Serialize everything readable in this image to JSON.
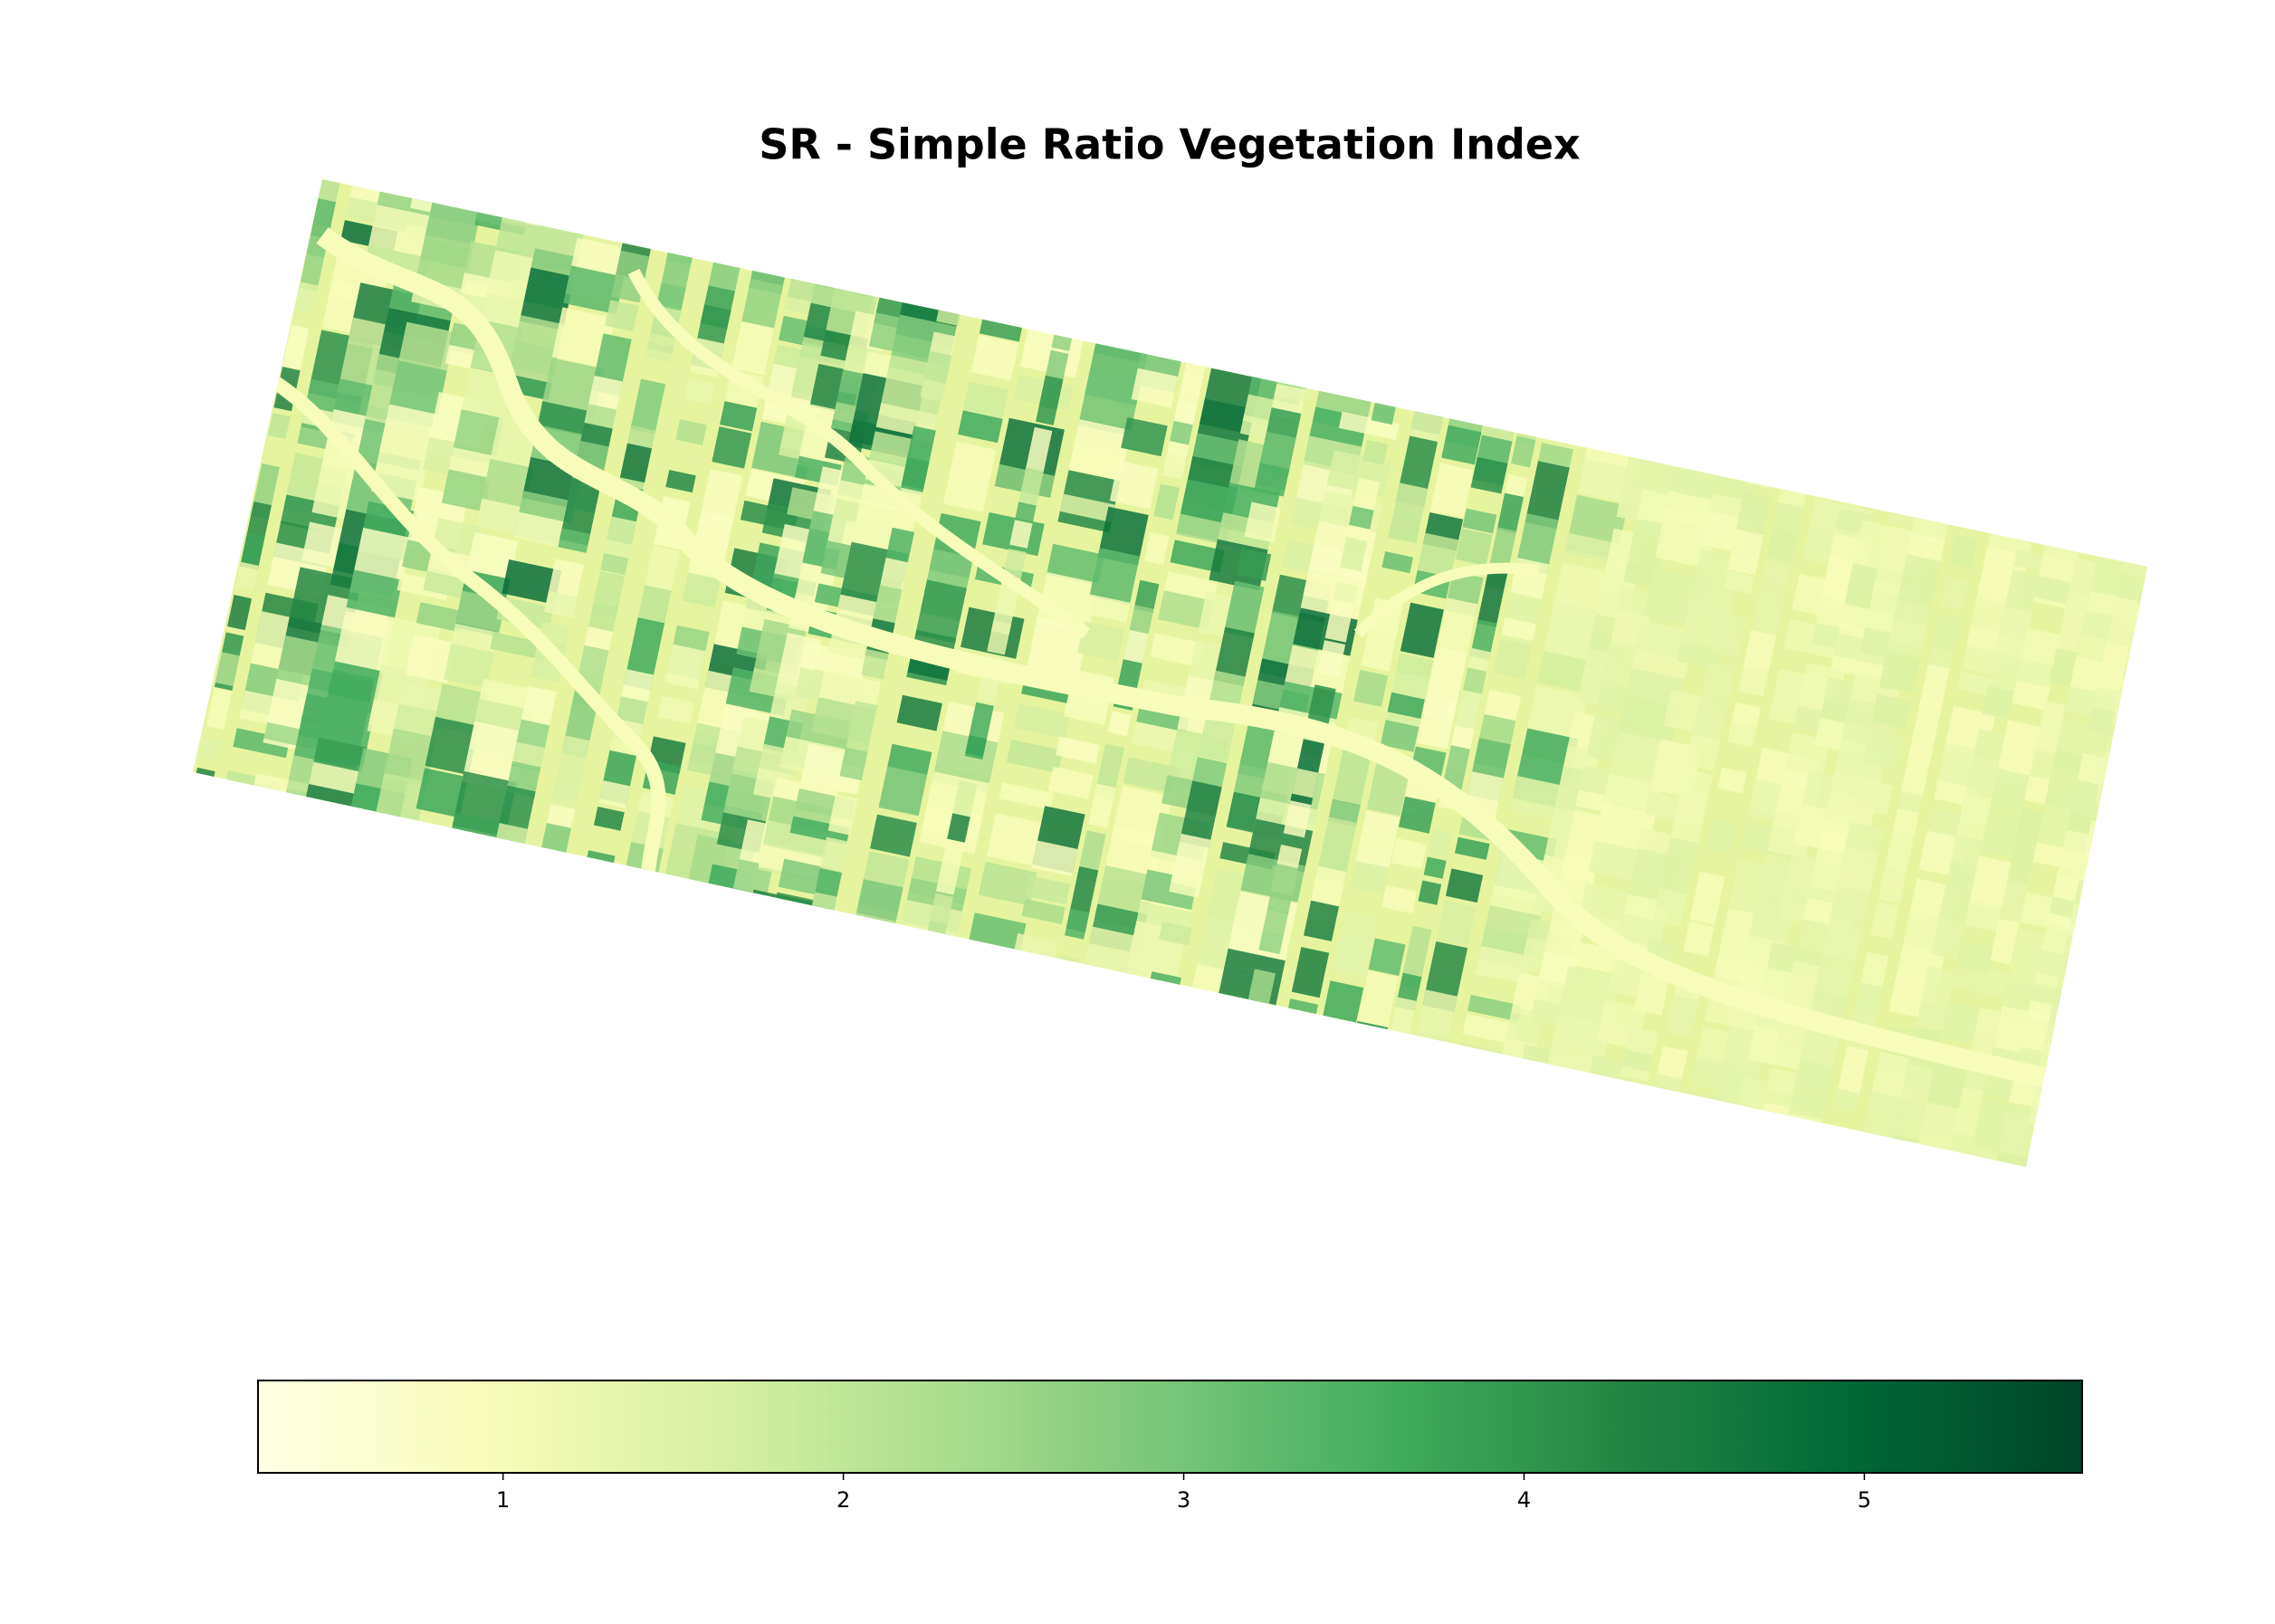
{
  "chart_data": {
    "type": "image",
    "title": "SR - Simple Ratio Vegetation Index",
    "colorbar": {
      "lim": [
        0.28,
        5.64
      ],
      "ticks": [
        1,
        2,
        3,
        4,
        5
      ],
      "colors": [
        "#ffffe5",
        "#f7fcb9",
        "#d9f0a3",
        "#addd8e",
        "#78c679",
        "#41ab5d",
        "#238443",
        "#006837",
        "#004529"
      ]
    }
  }
}
